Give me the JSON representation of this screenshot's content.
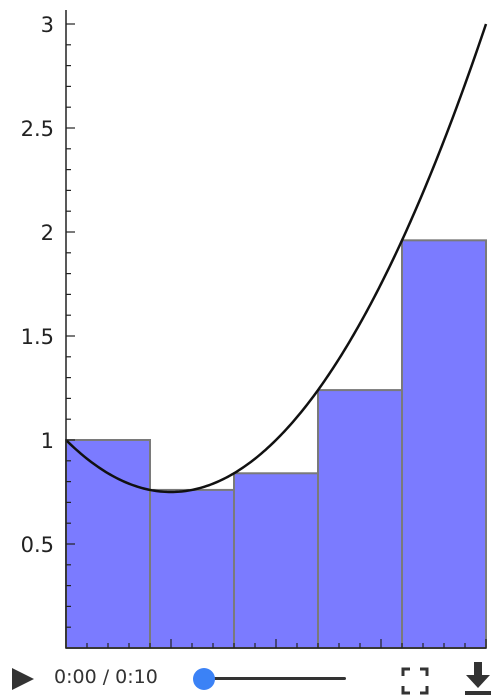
{
  "chart_data": {
    "type": "bar",
    "description_kind": "riemann-sum",
    "x": [
      0,
      0.4,
      0.8,
      1.2,
      1.6
    ],
    "bar_width": 0.4,
    "values": [
      1.0,
      0.76,
      0.84,
      1.24,
      1.96
    ],
    "curve": {
      "formula": "x^2 - x + 1",
      "x_range": [
        0,
        2
      ]
    },
    "xlim": [
      0,
      2
    ],
    "ylim": [
      0,
      3
    ],
    "y_ticks": [
      0.5,
      1,
      1.5,
      2,
      2.5,
      3
    ],
    "y_tick_labels": [
      "0.5",
      "1",
      "1.5",
      "2",
      "2.5",
      "3"
    ],
    "colors": {
      "bar_fill": "#7b7bff",
      "bar_stroke": "#7a7a7a",
      "curve": "#111111",
      "axis": "#222222"
    }
  },
  "player": {
    "time_text": "0:00 / 0:10",
    "progress": 0,
    "accent": "#3b82f6",
    "icons": {
      "play": "play-icon",
      "fullscreen": "fullscreen-icon",
      "download": "download-icon"
    }
  }
}
